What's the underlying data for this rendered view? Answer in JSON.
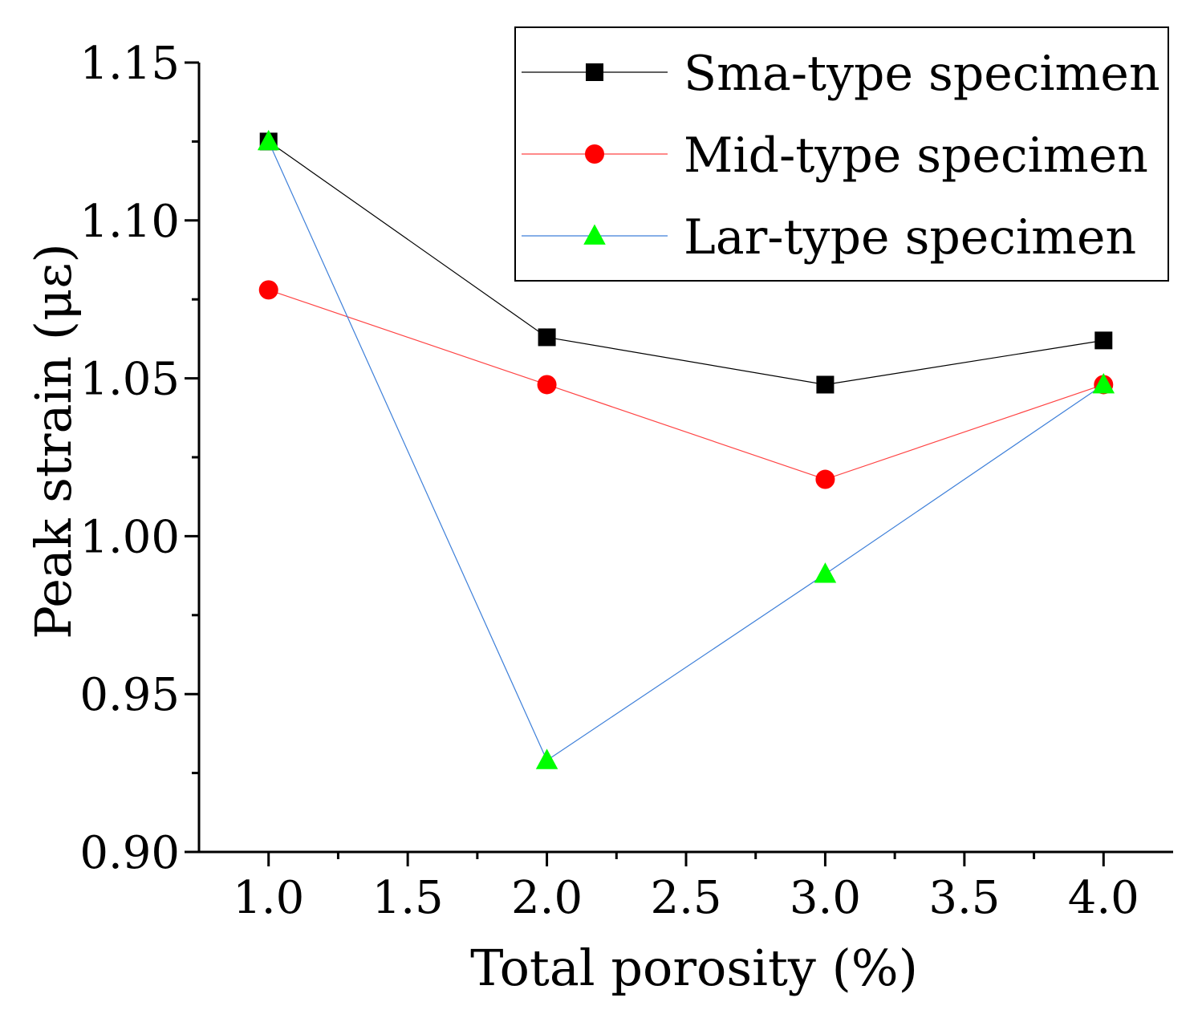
{
  "chart_data": {
    "type": "line",
    "title": "",
    "xlabel": "Total porosity (%)",
    "ylabel": "Peak strain (με)",
    "xlim": [
      0.75,
      4.25
    ],
    "ylim": [
      0.9,
      1.15
    ],
    "xticks": [
      1.0,
      1.5,
      2.0,
      2.5,
      3.0,
      3.5,
      4.0
    ],
    "xtick_labels": [
      "1.0",
      "1.5",
      "2.0",
      "2.5",
      "3.0",
      "3.5",
      "4.0"
    ],
    "yticks": [
      0.9,
      0.95,
      1.0,
      1.05,
      1.1,
      1.15
    ],
    "ytick_labels": [
      "0.90",
      "0.95",
      "1.00",
      "1.05",
      "1.10",
      "1.15"
    ],
    "x": [
      1.0,
      2.0,
      3.0,
      4.0
    ],
    "legend_position": "top-right",
    "series": [
      {
        "name": "Sma-type specimen",
        "values": [
          1.125,
          1.063,
          1.048,
          1.062
        ],
        "color": "#000000",
        "marker": "square"
      },
      {
        "name": "Mid-type specimen",
        "values": [
          1.078,
          1.048,
          1.018,
          1.048
        ],
        "color": "#ff0000",
        "line_color": "#ff4444",
        "marker": "circle"
      },
      {
        "name": "Lar-type specimen",
        "values": [
          1.125,
          0.929,
          0.988,
          1.048
        ],
        "color": "#00ff00",
        "line_color": "#3d7fd9",
        "marker": "triangle"
      }
    ]
  }
}
